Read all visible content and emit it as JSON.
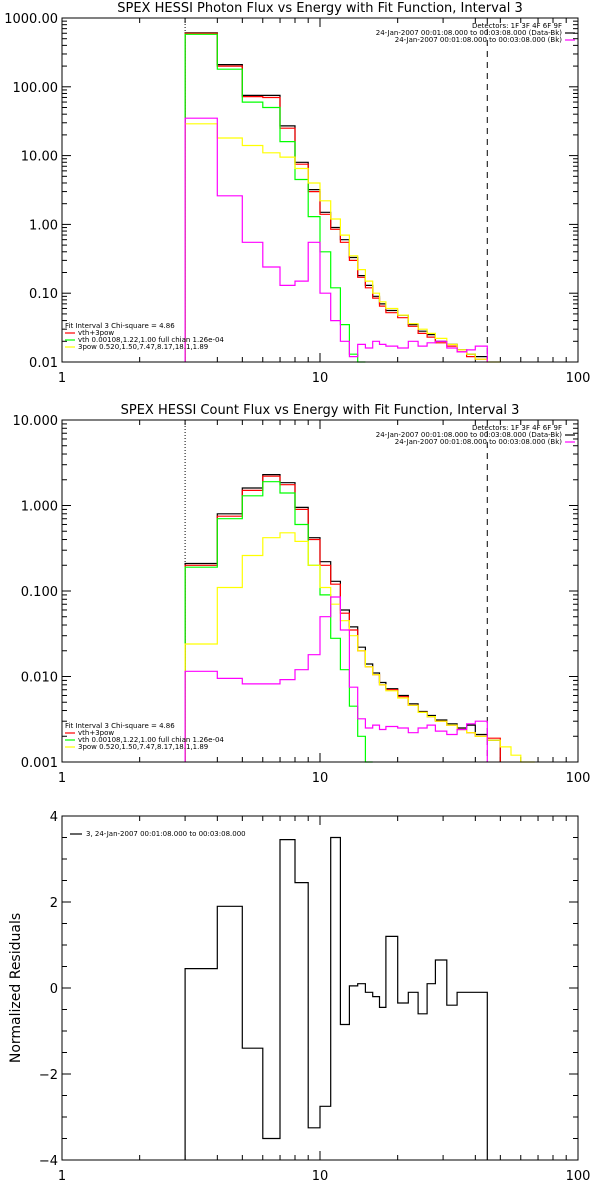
{
  "chart_data": [
    {
      "type": "line",
      "title": "SPEX HESSI Photon Flux vs Energy with Fit Function, Interval 3",
      "xlabel": "",
      "ylabel": "",
      "xscale": "log",
      "yscale": "log",
      "xlim": [
        1,
        100
      ],
      "ylim": [
        0.01,
        1000
      ],
      "x_tick_labels": [
        "1",
        "10",
        "100"
      ],
      "y_ticks": [
        0.01,
        0.1,
        1,
        10,
        100,
        1000
      ],
      "y_tick_labels": [
        "0.01",
        "0.10",
        "1.00",
        "10.00",
        "100.00",
        "1000.00"
      ],
      "grid": false,
      "vlines": [
        {
          "x": 3,
          "style": "dotted",
          "color": "#000000"
        },
        {
          "x": 44.5,
          "style": "dashed",
          "color": "#000000"
        }
      ],
      "legend_top_right": [
        {
          "text": "Detectors: 1F 3F 4F 6F 9F",
          "color": null
        },
        {
          "text": "24-Jan-2007 00:01:08.000 to 00:03:08.000 (Data-Bk)",
          "color": "#000000"
        },
        {
          "text": "24-Jan-2007 00:01:08.000 to 00:03:08.000 (Bk)",
          "color": "#ff00ff"
        }
      ],
      "legend_bottom_left": [
        {
          "text": "Fit Interval 3   Chi-square = 4.86",
          "color": null
        },
        {
          "text": "vth+3pow",
          "color": "#ff0000"
        },
        {
          "text": "vth 0.00108,1.22,1.00  full chian 1.26e-04",
          "color": "#00ff00"
        },
        {
          "text": "3pow 0.520,1.50,7.47,8.17,18.1,1.89",
          "color": "#ffff00"
        }
      ],
      "edges": [
        3,
        4,
        5,
        6,
        7,
        8,
        9,
        10,
        11,
        12,
        13,
        14,
        15,
        16,
        17,
        18,
        20,
        22,
        24,
        26,
        28,
        31,
        34,
        37,
        40,
        44.5,
        50
      ],
      "series": [
        {
          "color": "#000000",
          "values": [
            610,
            210,
            75,
            75,
            27,
            8,
            3.2,
            1.5,
            0.9,
            0.6,
            0.33,
            0.18,
            0.13,
            0.09,
            0.07,
            0.056,
            0.048,
            0.035,
            0.028,
            0.025,
            0.02,
            0.018,
            0.015,
            0.013,
            0.012,
            null
          ]
        },
        {
          "color": "#ff0000",
          "values": [
            600,
            200,
            72,
            70,
            25,
            7.5,
            3.0,
            1.4,
            0.85,
            0.55,
            0.3,
            0.17,
            0.12,
            0.085,
            0.065,
            0.052,
            0.044,
            0.033,
            0.026,
            0.023,
            0.019,
            0.017,
            0.014,
            0.012,
            0.011,
            null
          ]
        },
        {
          "color": "#00ff00",
          "values": [
            580,
            180,
            60,
            50,
            16,
            4.5,
            1.3,
            0.4,
            0.12,
            0.035,
            0.013,
            0.008,
            null,
            null,
            null,
            null,
            null,
            null,
            null,
            null,
            null,
            null,
            null,
            null,
            null,
            null
          ]
        },
        {
          "color": "#ffff00",
          "values": [
            29,
            18,
            14,
            11,
            9.5,
            6.5,
            4.0,
            2.2,
            1.2,
            0.7,
            0.35,
            0.22,
            0.15,
            0.1,
            0.075,
            0.06,
            0.048,
            0.036,
            0.03,
            0.026,
            0.022,
            0.018,
            0.015,
            0.013,
            0.011,
            0.01
          ]
        },
        {
          "color": "#ff00ff",
          "values": [
            35,
            2.6,
            0.55,
            0.24,
            0.13,
            0.15,
            0.55,
            0.1,
            0.04,
            0.02,
            0.012,
            0.018,
            0.016,
            0.02,
            0.018,
            0.017,
            0.016,
            0.02,
            0.017,
            0.019,
            0.02,
            0.016,
            0.014,
            0.015,
            0.017,
            null
          ]
        }
      ]
    },
    {
      "type": "line",
      "title": "SPEX HESSI Count Flux vs Energy with Fit Function, Interval 3",
      "xlabel": "",
      "ylabel": "",
      "xscale": "log",
      "yscale": "log",
      "xlim": [
        1,
        100
      ],
      "ylim": [
        0.001,
        10
      ],
      "x_tick_labels": [
        "1",
        "10",
        "100"
      ],
      "y_ticks": [
        0.001,
        0.01,
        0.1,
        1,
        10
      ],
      "y_tick_labels": [
        "0.001",
        "0.010",
        "0.100",
        "1.000",
        "10.000"
      ],
      "grid": false,
      "vlines": [
        {
          "x": 3,
          "style": "dotted",
          "color": "#000000"
        },
        {
          "x": 44.5,
          "style": "dashed",
          "color": "#000000"
        }
      ],
      "legend_top_right": [
        {
          "text": "Detectors: 1F 3F 4F 6F 9F",
          "color": null
        },
        {
          "text": "24-Jan-2007 00:01:08.000 to 00:03:08.000 (Data-Bk)",
          "color": "#000000"
        },
        {
          "text": "24-Jan-2007 00:01:08.000 to 00:03:08.000 (Bk)",
          "color": "#ff00ff"
        }
      ],
      "legend_bottom_left": [
        {
          "text": "Fit Interval 3   Chi-square = 4.86",
          "color": null
        },
        {
          "text": "vth+3pow",
          "color": "#ff0000"
        },
        {
          "text": "vth 0.00108,1.22,1.00  full chian 1.26e-04",
          "color": "#00ff00"
        },
        {
          "text": "3pow 0.520,1.50,7.47,8.17,18.1,1.89",
          "color": "#ffff00"
        }
      ],
      "edges": [
        3,
        4,
        5,
        6,
        7,
        8,
        9,
        10,
        11,
        12,
        13,
        14,
        15,
        16,
        17,
        18,
        20,
        22,
        24,
        26,
        28,
        31,
        34,
        37,
        40,
        44.5,
        50,
        55,
        60,
        68
      ],
      "series": [
        {
          "color": "#000000",
          "values": [
            0.21,
            0.8,
            1.6,
            2.3,
            1.85,
            0.95,
            0.42,
            0.22,
            0.13,
            0.06,
            0.038,
            0.022,
            0.014,
            0.011,
            0.0085,
            0.0072,
            0.006,
            0.0048,
            0.0039,
            0.0035,
            0.0031,
            0.0028,
            0.0025,
            0.0027,
            0.0021,
            0.0018,
            null,
            null,
            null
          ]
        },
        {
          "color": "#ff0000",
          "values": [
            0.2,
            0.75,
            1.5,
            2.2,
            1.75,
            0.9,
            0.4,
            0.2,
            0.12,
            0.055,
            0.035,
            0.02,
            0.013,
            0.0105,
            0.008,
            0.007,
            0.0058,
            0.0046,
            0.0038,
            0.0034,
            0.003,
            0.0027,
            0.0024,
            0.0022,
            0.002,
            0.0019,
            null,
            null,
            null
          ]
        },
        {
          "color": "#00ff00",
          "values": [
            0.19,
            0.7,
            1.3,
            1.9,
            1.4,
            0.6,
            0.2,
            0.09,
            0.028,
            0.012,
            0.0045,
            0.002,
            0.001,
            null,
            null,
            null,
            null,
            null,
            null,
            null,
            null,
            null,
            null,
            null,
            null,
            null,
            null,
            null,
            null
          ]
        },
        {
          "color": "#ffff00",
          "values": [
            0.024,
            0.11,
            0.26,
            0.42,
            0.48,
            0.38,
            0.2,
            0.11,
            0.07,
            0.045,
            0.03,
            0.02,
            0.013,
            0.0105,
            0.008,
            0.0068,
            0.0056,
            0.0046,
            0.0038,
            0.0034,
            0.003,
            0.0027,
            0.0024,
            0.0022,
            0.002,
            0.0018,
            0.0015,
            0.0012,
            0.001
          ]
        },
        {
          "color": "#ff00ff",
          "values": [
            0.0115,
            0.0095,
            0.0082,
            0.0082,
            0.0092,
            0.012,
            0.018,
            0.05,
            0.085,
            0.035,
            0.0075,
            0.0032,
            0.0025,
            0.0027,
            0.0024,
            0.0026,
            0.0025,
            0.0022,
            0.0025,
            0.0027,
            0.0023,
            0.0021,
            0.0024,
            0.0028,
            0.003,
            null,
            null,
            null,
            null
          ]
        }
      ]
    },
    {
      "type": "line",
      "title": "",
      "xlabel": "",
      "ylabel": "Normalized Residuals",
      "xscale": "log",
      "yscale": "linear",
      "xlim": [
        1,
        100
      ],
      "ylim": [
        -4,
        4
      ],
      "x_tick_labels": [
        "1",
        "10",
        "100"
      ],
      "y_ticks": [
        -4,
        -2,
        0,
        2,
        4
      ],
      "y_tick_labels": [
        "−4",
        "−2",
        "0",
        "2",
        "4"
      ],
      "grid": false,
      "vlines": [],
      "legend_top_left": [
        {
          "text": "3, 24-Jan-2007 00:01:08.000 to 00:03:08.000",
          "color": "#000000"
        }
      ],
      "edges": [
        3,
        4,
        5,
        6,
        7,
        8,
        9,
        10,
        11,
        12,
        13,
        14,
        15,
        16,
        17,
        18,
        20,
        22,
        24,
        26,
        28,
        31,
        34,
        37,
        40,
        44.5
      ],
      "series": [
        {
          "color": "#000000",
          "values": [
            0.45,
            1.9,
            -1.4,
            -3.5,
            3.45,
            2.45,
            -3.25,
            -2.75,
            3.5,
            -0.85,
            0.05,
            0.1,
            -0.1,
            -0.2,
            -0.45,
            1.2,
            -0.35,
            -0.1,
            -0.6,
            0.1,
            0.65,
            -0.4,
            -0.1,
            -0.1,
            -0.1
          ]
        }
      ]
    }
  ],
  "colors": {
    "data": "#000000",
    "total_fit": "#ff0000",
    "vth": "#00ff00",
    "pow": "#ffff00",
    "background": "#ff00ff"
  }
}
